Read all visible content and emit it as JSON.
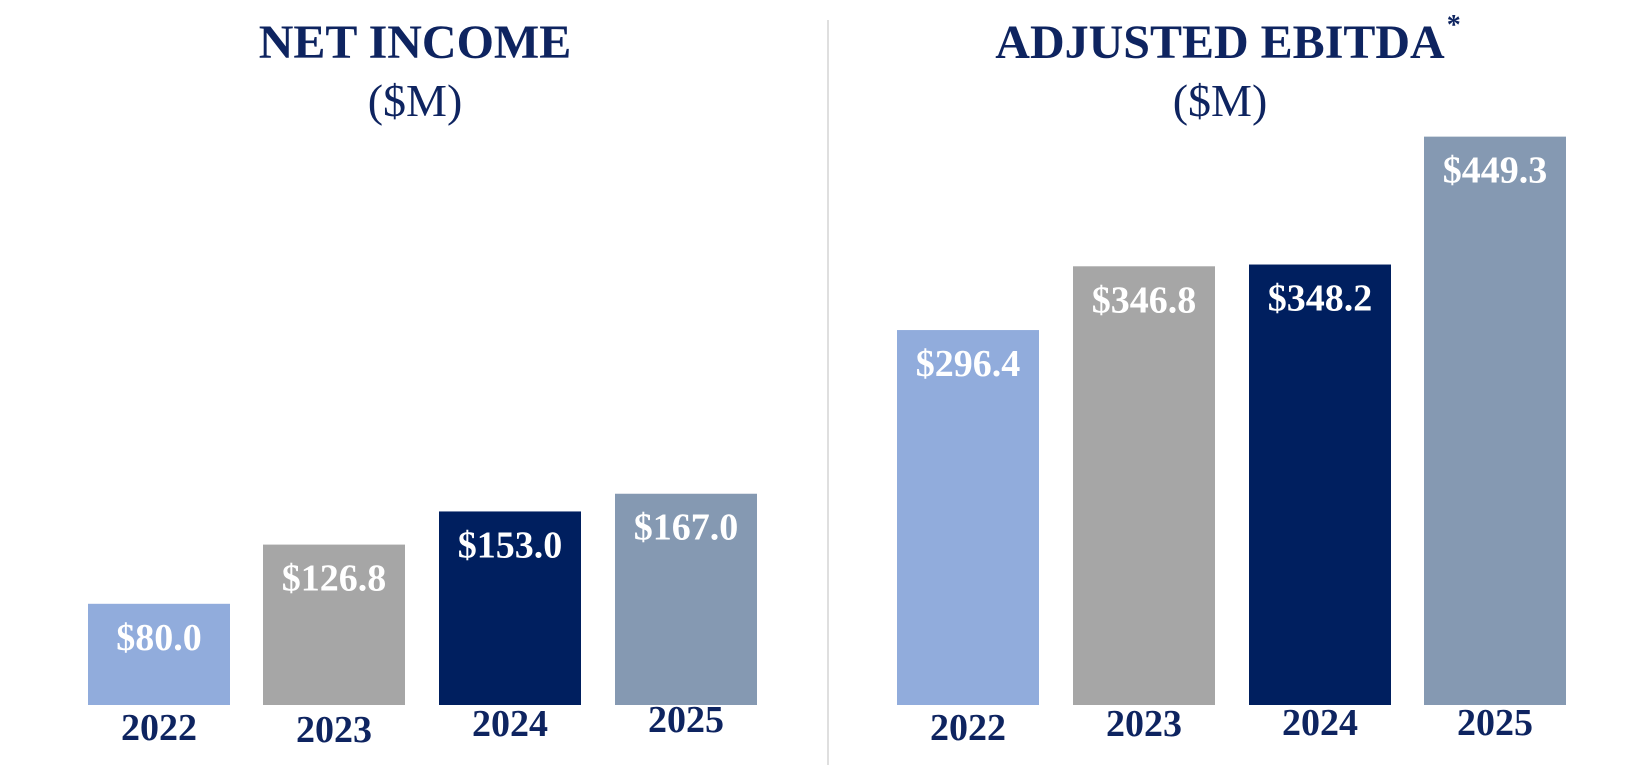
{
  "chart_data": [
    {
      "type": "bar",
      "title": "NET INCOME",
      "title_suffix": "",
      "unit_label": "($M)",
      "categories": [
        "2022",
        "2023",
        "2024",
        "2025"
      ],
      "values": [
        80.0,
        126.8,
        153.0,
        167.0
      ],
      "value_labels": [
        "$80.0",
        "$126.8",
        "$153.0",
        "$167.0"
      ],
      "colors": [
        "#91acdc",
        "#a6a6a6",
        "#001f5f",
        "#8599b2"
      ],
      "ylim": [
        0,
        500
      ],
      "grid": false,
      "legend": "none"
    },
    {
      "type": "bar",
      "title": "ADJUSTED EBITDA",
      "title_suffix": "*",
      "unit_label": "($M)",
      "categories": [
        "2022",
        "2023",
        "2024",
        "2025"
      ],
      "values": [
        296.4,
        346.8,
        348.2,
        449.3
      ],
      "value_labels": [
        "$296.4",
        "$346.8",
        "$348.2",
        "$449.3"
      ],
      "colors": [
        "#91acdc",
        "#a6a6a6",
        "#001f5f",
        "#8599b2"
      ],
      "ylim": [
        0,
        500
      ],
      "grid": false,
      "legend": "none"
    }
  ],
  "divider_color": "#bfbfbf"
}
